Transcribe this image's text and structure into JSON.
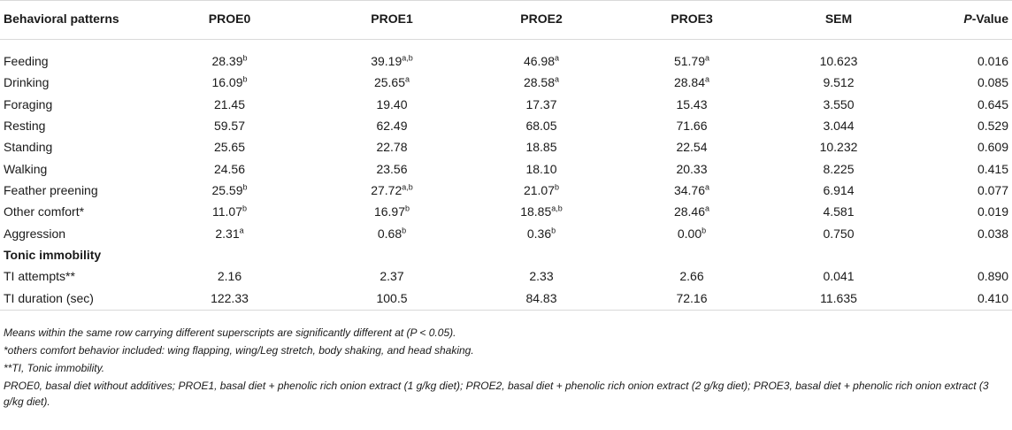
{
  "table": {
    "headers": {
      "pattern": "Behavioral patterns",
      "groups": [
        "PROE0",
        "PROE1",
        "PROE2",
        "PROE3"
      ],
      "sem": "SEM",
      "p_prefix": "P",
      "p_suffix": "-Value"
    },
    "rows": [
      {
        "label": "Feeding",
        "cells": [
          {
            "v": "28.39",
            "s": "b"
          },
          {
            "v": "39.19",
            "s": "a,b"
          },
          {
            "v": "46.98",
            "s": "a"
          },
          {
            "v": "51.79",
            "s": "a"
          }
        ],
        "sem": "10.623",
        "p": "0.016"
      },
      {
        "label": "Drinking",
        "cells": [
          {
            "v": "16.09",
            "s": "b"
          },
          {
            "v": "25.65",
            "s": "a"
          },
          {
            "v": "28.58",
            "s": "a"
          },
          {
            "v": "28.84",
            "s": "a"
          }
        ],
        "sem": "9.512",
        "p": "0.085"
      },
      {
        "label": "Foraging",
        "cells": [
          {
            "v": "21.45",
            "s": ""
          },
          {
            "v": "19.40",
            "s": ""
          },
          {
            "v": "17.37",
            "s": ""
          },
          {
            "v": "15.43",
            "s": ""
          }
        ],
        "sem": "3.550",
        "p": "0.645"
      },
      {
        "label": "Resting",
        "cells": [
          {
            "v": "59.57",
            "s": ""
          },
          {
            "v": "62.49",
            "s": ""
          },
          {
            "v": "68.05",
            "s": ""
          },
          {
            "v": "71.66",
            "s": ""
          }
        ],
        "sem": "3.044",
        "p": "0.529"
      },
      {
        "label": "Standing",
        "cells": [
          {
            "v": "25.65",
            "s": ""
          },
          {
            "v": "22.78",
            "s": ""
          },
          {
            "v": "18.85",
            "s": ""
          },
          {
            "v": "22.54",
            "s": ""
          }
        ],
        "sem": "10.232",
        "p": "0.609"
      },
      {
        "label": "Walking",
        "cells": [
          {
            "v": "24.56",
            "s": ""
          },
          {
            "v": "23.56",
            "s": ""
          },
          {
            "v": "18.10",
            "s": ""
          },
          {
            "v": "20.33",
            "s": ""
          }
        ],
        "sem": "8.225",
        "p": "0.415"
      },
      {
        "label": "Feather preening",
        "cells": [
          {
            "v": "25.59",
            "s": "b"
          },
          {
            "v": "27.72",
            "s": "a,b"
          },
          {
            "v": "21.07",
            "s": "b"
          },
          {
            "v": "34.76",
            "s": "a"
          }
        ],
        "sem": "6.914",
        "p": "0.077"
      },
      {
        "label": "Other comfort*",
        "cells": [
          {
            "v": "11.07",
            "s": "b"
          },
          {
            "v": "16.97",
            "s": "b"
          },
          {
            "v": "18.85",
            "s": "a,b"
          },
          {
            "v": "28.46",
            "s": "a"
          }
        ],
        "sem": "4.581",
        "p": "0.019"
      },
      {
        "label": "Aggression",
        "cells": [
          {
            "v": "2.31",
            "s": "a"
          },
          {
            "v": "0.68",
            "s": "b"
          },
          {
            "v": "0.36",
            "s": "b"
          },
          {
            "v": "0.00",
            "s": "b"
          }
        ],
        "sem": "0.750",
        "p": "0.038"
      }
    ],
    "section_title": "Tonic immobility",
    "section_rows": [
      {
        "label": "TI attempts**",
        "cells": [
          {
            "v": "2.16",
            "s": ""
          },
          {
            "v": "2.37",
            "s": ""
          },
          {
            "v": "2.33",
            "s": ""
          },
          {
            "v": "2.66",
            "s": ""
          }
        ],
        "sem": "0.041",
        "p": "0.890"
      },
      {
        "label": "TI duration (sec)",
        "cells": [
          {
            "v": "122.33",
            "s": ""
          },
          {
            "v": "100.5",
            "s": ""
          },
          {
            "v": "84.83",
            "s": ""
          },
          {
            "v": "72.16",
            "s": ""
          }
        ],
        "sem": "11.635",
        "p": "0.410"
      }
    ]
  },
  "footnotes": [
    "Means within the same row carrying different superscripts are significantly different at (P < 0.05).",
    "*others comfort behavior included: wing flapping, wing/Leg stretch, body shaking, and head shaking.",
    "**TI, Tonic immobility.",
    "PROE0, basal diet without additives; PROE1, basal diet + phenolic rich onion extract (1 g/kg diet); PROE2, basal diet + phenolic rich onion extract (2 g/kg diet); PROE3, basal diet + phenolic rich onion extract (3 g/kg diet)."
  ]
}
